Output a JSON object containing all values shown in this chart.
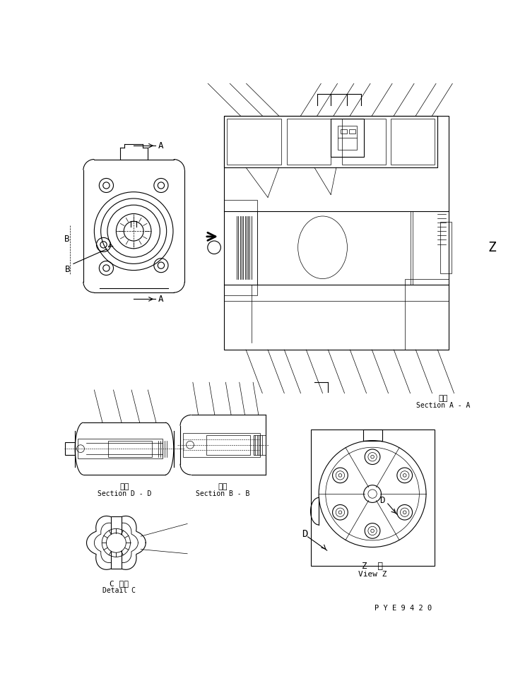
{
  "bg_color": "#ffffff",
  "line_color": "#000000",
  "fig_width": 7.26,
  "fig_height": 9.81,
  "dpi": 100,
  "label_section_aa": [
    "断面",
    "Section A - A"
  ],
  "label_section_dd": [
    "断面",
    "Section D - D"
  ],
  "label_section_bb": [
    "断面",
    "Section B - B"
  ],
  "label_detail_c": [
    "C 詳細",
    "Detail C"
  ],
  "label_view_z": [
    "Z  視",
    "View Z"
  ],
  "label_z": "Z",
  "label_a": "A",
  "label_b": "B",
  "label_d": "D",
  "part_number": "P Y E 9 4 2 0"
}
